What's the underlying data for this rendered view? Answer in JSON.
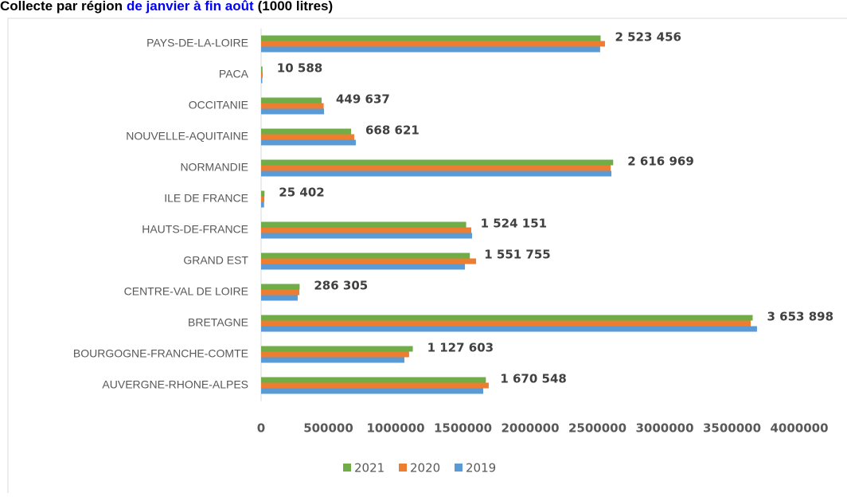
{
  "chart_data": {
    "type": "bar",
    "orientation": "horizontal",
    "title_parts": [
      {
        "text": "Collecte  par région",
        "color": "#000000"
      },
      {
        "text": "de janvier à fin août",
        "color": "#0000ff"
      },
      {
        "text": "(1000 litres)",
        "color": "#000000"
      }
    ],
    "categories": [
      "PAYS-DE-LA-LOIRE",
      "PACA",
      "OCCITANIE",
      "NOUVELLE-AQUITAINE",
      "NORMANDIE",
      "ILE DE FRANCE",
      "HAUTS-DE-FRANCE",
      "GRAND EST",
      "CENTRE-VAL DE LOIRE",
      "BRETAGNE",
      "BOURGOGNE-FRANCHE-COMTE",
      "AUVERGNE-RHONE-ALPES"
    ],
    "series": [
      {
        "name": "2021",
        "color": "#70ad47",
        "values": [
          2523456,
          10588,
          449637,
          668621,
          2616969,
          25402,
          1524151,
          1551755,
          286305,
          3653898,
          1127603,
          1670548
        ],
        "value_labels": [
          "2 523 456",
          "10 588",
          "449 637",
          "668 621",
          "2 616 969",
          "25 402",
          "1 524 151",
          "1 551 755",
          "286 305",
          "3 653 898",
          "1 127 603",
          "1 670 548"
        ]
      },
      {
        "name": "2020",
        "color": "#ed7d31",
        "values": [
          2556000,
          12000,
          465000,
          692000,
          2598000,
          24000,
          1562000,
          1598000,
          284000,
          3639000,
          1100000,
          1692000
        ]
      },
      {
        "name": "2019",
        "color": "#5b9bd5",
        "values": [
          2520000,
          9000,
          468000,
          704000,
          2604000,
          22000,
          1568000,
          1515000,
          272000,
          3686000,
          1065000,
          1651000
        ]
      }
    ],
    "xlim": [
      0,
      4000000
    ],
    "xticks": [
      0,
      500000,
      1000000,
      1500000,
      2000000,
      2500000,
      3000000,
      3500000,
      4000000
    ],
    "legend": "bottom"
  }
}
